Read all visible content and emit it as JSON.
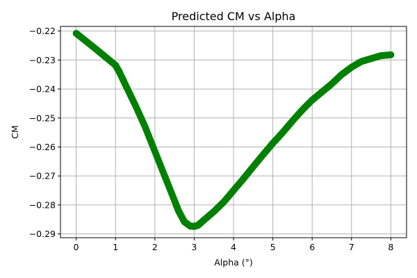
{
  "chart_data": {
    "type": "scatter",
    "title": "Predicted CM vs Alpha",
    "xlabel": "Alpha (°)",
    "ylabel": "CM",
    "xlim": [
      -0.4,
      8.4
    ],
    "ylim": [
      -0.2913,
      -0.2184
    ],
    "xticks": [
      0,
      1,
      2,
      3,
      4,
      5,
      6,
      7,
      8
    ],
    "yticks": [
      -0.22,
      -0.23,
      -0.24,
      -0.25,
      -0.26,
      -0.27,
      -0.28,
      -0.29
    ],
    "grid": true,
    "marker_color": "#008000",
    "series": [
      {
        "x": [
          0,
          0.25,
          0.5,
          0.75,
          1.0,
          1.1,
          1.25,
          1.5,
          1.75,
          2.0,
          2.25,
          2.5,
          2.6,
          2.75,
          2.9,
          3.0,
          3.1,
          3.25,
          3.5,
          3.75,
          4.0,
          4.25,
          4.5,
          4.75,
          5.0,
          5.25,
          5.5,
          5.75,
          6.0,
          6.25,
          6.5,
          6.75,
          7.0,
          7.25,
          7.5,
          7.75,
          8.0
        ],
        "y": [
          -0.2208,
          -0.2235,
          -0.2262,
          -0.229,
          -0.2318,
          -0.2342,
          -0.2385,
          -0.2455,
          -0.253,
          -0.2615,
          -0.27,
          -0.2785,
          -0.282,
          -0.2858,
          -0.2873,
          -0.2874,
          -0.287,
          -0.2852,
          -0.2823,
          -0.279,
          -0.275,
          -0.271,
          -0.2668,
          -0.2627,
          -0.2587,
          -0.255,
          -0.251,
          -0.2472,
          -0.2438,
          -0.241,
          -0.2382,
          -0.235,
          -0.2325,
          -0.2305,
          -0.2295,
          -0.2285,
          -0.2282
        ]
      }
    ]
  }
}
